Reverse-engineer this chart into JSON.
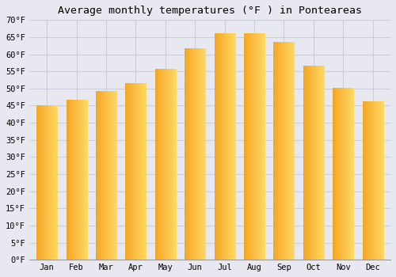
{
  "title": "Average monthly temperatures (°F ) in Ponteareas",
  "months": [
    "Jan",
    "Feb",
    "Mar",
    "Apr",
    "May",
    "Jun",
    "Jul",
    "Aug",
    "Sep",
    "Oct",
    "Nov",
    "Dec"
  ],
  "values": [
    45.0,
    46.5,
    49.0,
    51.5,
    55.5,
    61.5,
    66.0,
    66.0,
    63.5,
    56.5,
    50.0,
    46.0
  ],
  "bar_color_left": "#F5A623",
  "bar_color_right": "#FFD966",
  "background_color": "#E8E8F0",
  "grid_color": "#CCCCDD",
  "plot_bg_color": "#E8E8F0",
  "title_fontsize": 9.5,
  "tick_fontsize": 7.5,
  "ylim": [
    0,
    70
  ],
  "yticks": [
    0,
    5,
    10,
    15,
    20,
    25,
    30,
    35,
    40,
    45,
    50,
    55,
    60,
    65,
    70
  ]
}
